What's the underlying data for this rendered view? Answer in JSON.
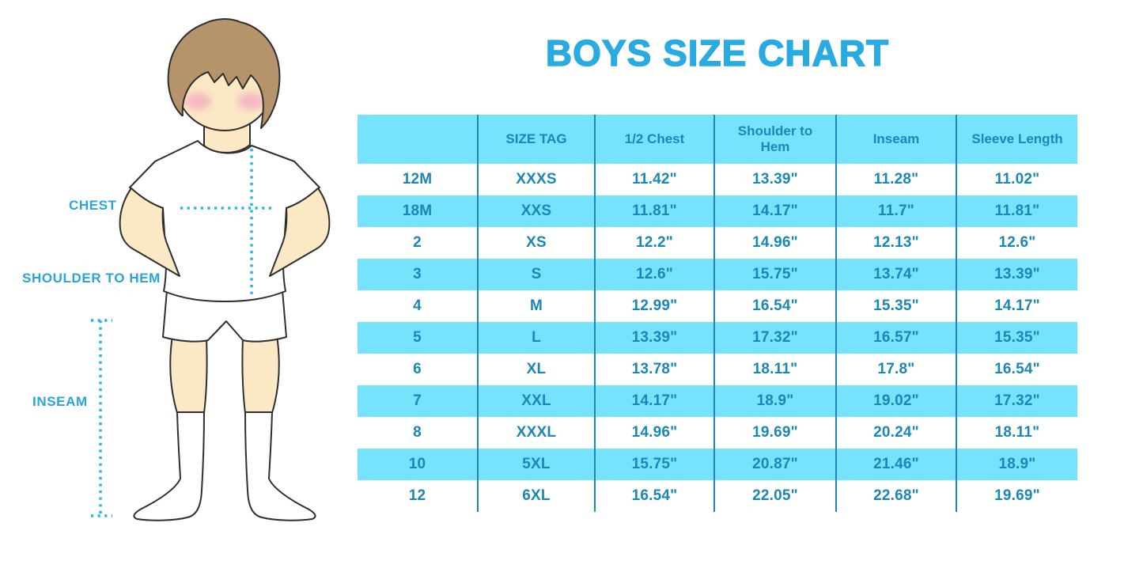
{
  "title": "BOYS SIZE CHART",
  "figure": {
    "alt": "Outline illustration of a boy in a white t-shirt, shorts and knee-high socks with measurement guide lines",
    "labels": {
      "chest": "CHEST",
      "shoulder_to_hem": "SHOULDER TO HEM",
      "inseam": "INSEAM"
    }
  },
  "colors": {
    "title": "#29abe2",
    "figure_label": "#29a4de",
    "dotted_line": "#29b5ea",
    "table_text": "#1b86b8",
    "table_stripe": "#76e2fc",
    "table_divider": "#1f87b6",
    "skin": "#fbe8c4",
    "hair": "#b5946c",
    "blush": "#f5b3c5",
    "outline": "#2f2f2f"
  },
  "table": {
    "headers": [
      "",
      "SIZE TAG",
      "1/2 Chest",
      "Shoulder to Hem",
      "Inseam",
      "Sleeve Length"
    ],
    "rows": [
      [
        "12M",
        "XXXS",
        "11.42\"",
        "13.39\"",
        "11.28\"",
        "11.02\""
      ],
      [
        "18M",
        "XXS",
        "11.81\"",
        "14.17\"",
        "11.7\"",
        "11.81\""
      ],
      [
        "2",
        "XS",
        "12.2\"",
        "14.96\"",
        "12.13\"",
        "12.6\""
      ],
      [
        "3",
        "S",
        "12.6\"",
        "15.75\"",
        "13.74\"",
        "13.39\""
      ],
      [
        "4",
        "M",
        "12.99\"",
        "16.54\"",
        "15.35\"",
        "14.17\""
      ],
      [
        "5",
        "L",
        "13.39\"",
        "17.32\"",
        "16.57\"",
        "15.35\""
      ],
      [
        "6",
        "XL",
        "13.78\"",
        "18.11\"",
        "17.8\"",
        "16.54\""
      ],
      [
        "7",
        "XXL",
        "14.17\"",
        "18.9\"",
        "19.02\"",
        "17.32\""
      ],
      [
        "8",
        "XXXL",
        "14.96\"",
        "19.69\"",
        "20.24\"",
        "18.11\""
      ],
      [
        "10",
        "5XL",
        "15.75\"",
        "20.87\"",
        "21.46\"",
        "18.9\""
      ],
      [
        "12",
        "6XL",
        "16.54\"",
        "22.05\"",
        "22.68\"",
        "19.69\""
      ]
    ]
  },
  "chart_data": {
    "type": "table",
    "title": "BOYS SIZE CHART",
    "units": "inches",
    "columns": [
      "Size",
      "SIZE TAG",
      "1/2 Chest",
      "Shoulder to Hem",
      "Inseam",
      "Sleeve Length"
    ],
    "rows": [
      [
        "12M",
        "XXXS",
        11.42,
        13.39,
        11.28,
        11.02
      ],
      [
        "18M",
        "XXS",
        11.81,
        14.17,
        11.7,
        11.81
      ],
      [
        "2",
        "XS",
        12.2,
        14.96,
        12.13,
        12.6
      ],
      [
        "3",
        "S",
        12.6,
        15.75,
        13.74,
        13.39
      ],
      [
        "4",
        "M",
        12.99,
        16.54,
        15.35,
        14.17
      ],
      [
        "5",
        "L",
        13.39,
        17.32,
        16.57,
        15.35
      ],
      [
        "6",
        "XL",
        13.78,
        18.11,
        17.8,
        16.54
      ],
      [
        "7",
        "XXL",
        14.17,
        18.9,
        19.02,
        17.32
      ],
      [
        "8",
        "XXXL",
        14.96,
        19.69,
        20.24,
        18.11
      ],
      [
        "10",
        "5XL",
        15.75,
        20.87,
        21.46,
        18.9
      ],
      [
        "12",
        "6XL",
        16.54,
        22.05,
        22.68,
        19.69
      ]
    ]
  }
}
